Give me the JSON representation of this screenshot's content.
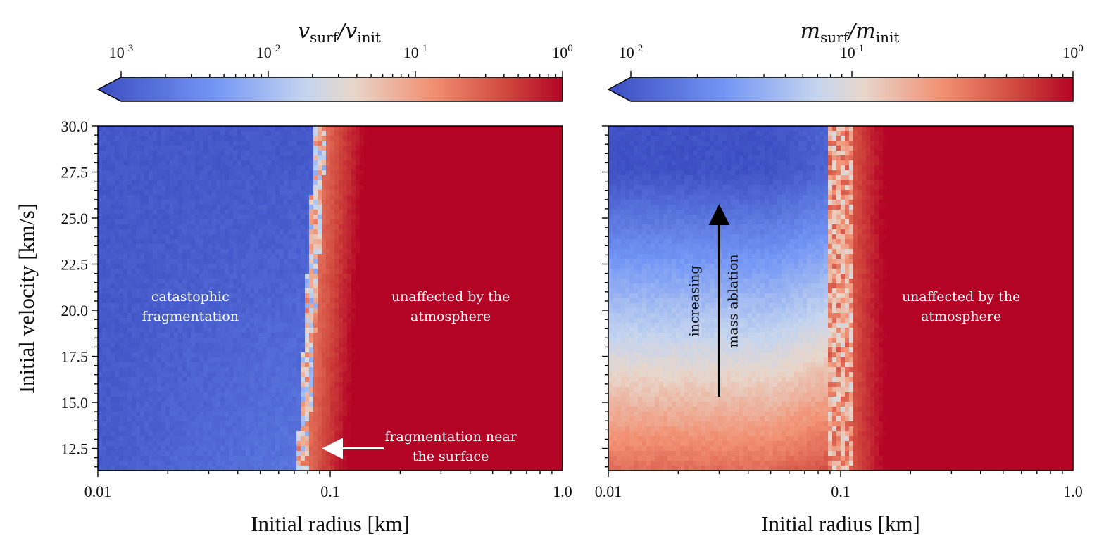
{
  "chart_data": [
    {
      "type": "heatmap",
      "title": "",
      "xlabel": "Initial radius [km]",
      "ylabel": "Initial velocity [km/s]",
      "xscale": "log",
      "xlim": [
        0.01,
        1.0
      ],
      "ylim": [
        11.3,
        30.0
      ],
      "x_ticks": [
        "0.01",
        "0.1",
        "1.0"
      ],
      "y_ticks": [
        "12.5",
        "15.0",
        "17.5",
        "20.0",
        "22.5",
        "25.0",
        "27.5",
        "30.0"
      ],
      "y_tick_values": [
        12.5,
        15.0,
        17.5,
        20.0,
        22.5,
        25.0,
        27.5,
        30.0
      ],
      "colorbar": {
        "label_main": "v",
        "label_sub_num": "surf",
        "label_den": "v",
        "label_sub_den": "init",
        "scale": "log",
        "range": [
          0.001,
          1.0
        ],
        "tick_values": [
          0.001,
          0.01,
          0.1,
          1.0
        ],
        "ticks": [
          {
            "base": "10",
            "exp": "-3"
          },
          {
            "base": "10",
            "exp": "-2"
          },
          {
            "base": "10",
            "exp": "-1"
          },
          {
            "base": "10",
            "exp": "0"
          }
        ],
        "extend": "min",
        "cmap": "coolwarm"
      },
      "transition_radius_km": {
        "at_11.3": 0.075,
        "at_30.0": 0.09
      },
      "annotations": [
        {
          "lines": [
            "catastophic",
            "fragmentation"
          ],
          "x": 0.025,
          "y": 20.5
        },
        {
          "lines": [
            "unaffected by the",
            "atmosphere"
          ],
          "x": 0.33,
          "y": 20.5
        },
        {
          "lines": [
            "fragmentation near",
            "the surface"
          ],
          "x": 0.33,
          "y": 12.9
        }
      ],
      "arrow": {
        "from": {
          "x": 0.17,
          "y": 12.5
        },
        "to": {
          "x": 0.1,
          "y": 12.5
        },
        "color": "#ffffff"
      }
    },
    {
      "type": "heatmap",
      "title": "",
      "xlabel": "Initial radius [km]",
      "ylabel": "",
      "xscale": "log",
      "xlim": [
        0.01,
        1.0
      ],
      "ylim": [
        11.3,
        30.0
      ],
      "x_ticks": [
        "0.01",
        "0.1",
        "1.0"
      ],
      "y_tick_values": [
        12.5,
        15.0,
        17.5,
        20.0,
        22.5,
        25.0,
        27.5,
        30.0
      ],
      "colorbar": {
        "label_main": "m",
        "label_sub_num": "surf",
        "label_den": "m",
        "label_sub_den": "init",
        "scale": "log",
        "range": [
          0.01,
          1.0
        ],
        "tick_values": [
          0.01,
          0.1,
          1.0
        ],
        "ticks": [
          {
            "base": "10",
            "exp": "-2"
          },
          {
            "base": "10",
            "exp": "-1"
          },
          {
            "base": "10",
            "exp": "0"
          }
        ],
        "extend": "min",
        "cmap": "coolwarm"
      },
      "transition_radius_km": {
        "at_11.3": 0.1,
        "at_30.0": 0.1
      },
      "annotations": [
        {
          "lines": [
            "unaffected by the",
            "atmosphere"
          ],
          "x": 0.33,
          "y": 20.5
        },
        {
          "lines": [
            "increasing"
          ],
          "x": 0.0245,
          "y": 20.5,
          "rotation": -90
        },
        {
          "lines": [
            "mass ablation"
          ],
          "x": 0.036,
          "y": 20.5,
          "rotation": -90
        }
      ],
      "arrow": {
        "from": {
          "x": 0.03,
          "y": 15.3
        },
        "to": {
          "x": 0.03,
          "y": 25.3
        },
        "color": "#000000"
      }
    }
  ]
}
